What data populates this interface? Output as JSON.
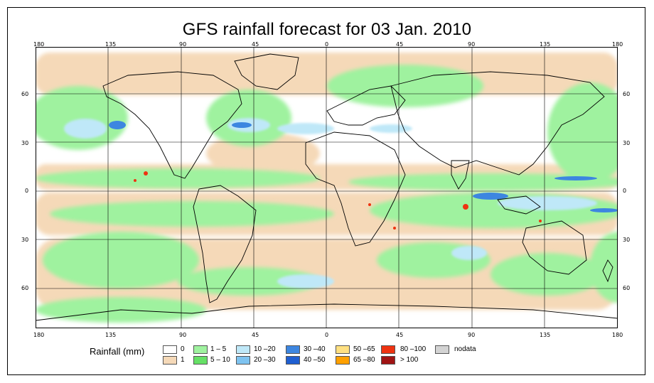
{
  "title": "GFS rainfall forecast for 03 Jan. 2010",
  "top_ticks": [
    "180",
    "135",
    "90",
    "45",
    "0",
    "45",
    "90",
    "135",
    "180"
  ],
  "bottom_ticks": [
    "180",
    "135",
    "90",
    "45",
    "0",
    "45",
    "90",
    "135",
    "180"
  ],
  "left_ticks": [
    "60",
    "30",
    "0",
    "30",
    "60"
  ],
  "right_ticks": [
    "60",
    "30",
    "0",
    "30",
    "60"
  ],
  "legend": {
    "title": "Rainfall (mm)",
    "items": [
      {
        "label": "0",
        "color": "#ffffff"
      },
      {
        "label": "1",
        "color": "#f5d9b8"
      },
      {
        "label": "1 – 5",
        "color": "#9ff29f"
      },
      {
        "label": "5 – 10",
        "color": "#66e066"
      },
      {
        "label": "10 –20",
        "color": "#bfe8f8"
      },
      {
        "label": "20 –30",
        "color": "#7ec3f0"
      },
      {
        "label": "30 –40",
        "color": "#3d86e0"
      },
      {
        "label": "40 –50",
        "color": "#1f5fd1"
      },
      {
        "label": "50 –65",
        "color": "#ffe082"
      },
      {
        "label": "65 –80",
        "color": "#ffa000"
      },
      {
        "label": "80 –100",
        "color": "#ee3311"
      },
      {
        "label": "> 100",
        "color": "#a01414"
      },
      {
        "label": "nodata",
        "color": "#d3d3d3"
      }
    ]
  }
}
